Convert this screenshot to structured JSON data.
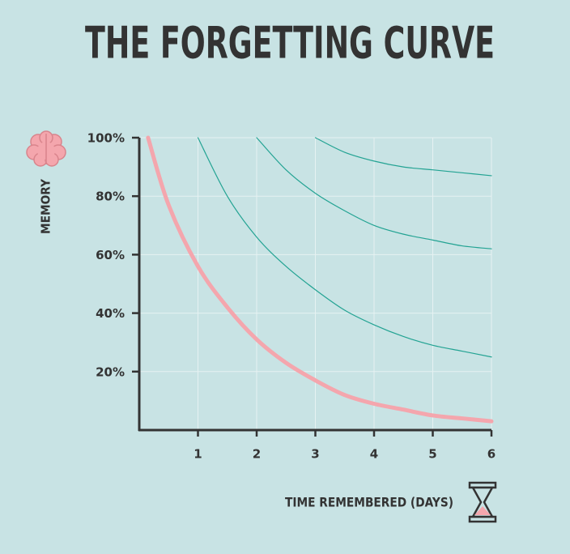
{
  "chart_data": {
    "type": "line",
    "title": "THE FORGETTING CURVE",
    "y_label": "MEMORY",
    "x_label": "TIME REMEMBERED (DAYS)",
    "x": [
      0.15,
      0.5,
      1,
      1.5,
      2,
      2.5,
      3,
      3.5,
      4,
      4.5,
      5,
      5.5,
      6
    ],
    "series": [
      {
        "color": "#f4a6ad",
        "width": 5,
        "values": [
          100,
          77,
          56,
          42,
          31,
          23,
          17,
          12,
          9,
          7,
          5,
          4,
          3
        ]
      },
      {
        "color": "#23a393",
        "width": 1.2,
        "values": [
          null,
          null,
          100,
          80,
          66,
          56,
          48,
          41,
          36,
          32,
          29,
          27,
          25
        ]
      },
      {
        "color": "#23a393",
        "width": 1.2,
        "values": [
          null,
          null,
          null,
          null,
          100,
          89,
          81,
          75,
          70,
          67,
          65,
          63,
          62
        ]
      },
      {
        "color": "#23a393",
        "width": 1.2,
        "values": [
          null,
          null,
          null,
          null,
          null,
          null,
          100,
          95,
          92,
          90,
          89,
          88,
          87
        ]
      }
    ],
    "xlim": [
      0,
      6
    ],
    "ylim": [
      0,
      100
    ],
    "xticks": [
      1,
      2,
      3,
      4,
      5,
      6
    ],
    "yticks": [
      {
        "value": 20,
        "label": "20%"
      },
      {
        "value": 40,
        "label": "40%"
      },
      {
        "value": 60,
        "label": "60%"
      },
      {
        "value": 80,
        "label": "80%"
      },
      {
        "value": 100,
        "label": "100%"
      }
    ],
    "grid": true
  }
}
